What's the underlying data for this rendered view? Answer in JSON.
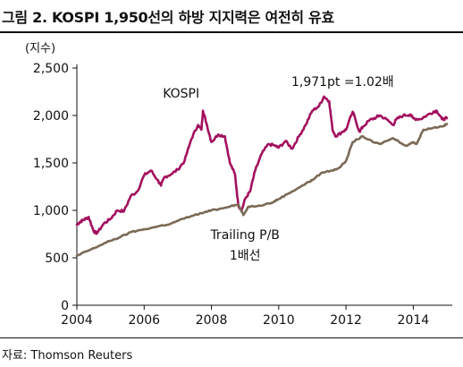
{
  "figure": {
    "title": "그림 2. KOSPI 1,950선의 하방 지지력은 여전히 유효",
    "source": "자료: Thomson Reuters"
  },
  "colors": {
    "kospi": "#a3105f",
    "pb_line": "#7a6a55",
    "axis": "#111111",
    "rule": "#111111"
  },
  "chart_data": {
    "type": "line",
    "title": "",
    "xlabel": "",
    "ylabel": "(지수)",
    "xlim": [
      2004,
      2015
    ],
    "ylim": [
      0,
      2500
    ],
    "x_ticks": [
      2004,
      2006,
      2008,
      2010,
      2012,
      2014
    ],
    "y_ticks": [
      0,
      500,
      1000,
      1500,
      2000,
      2500
    ],
    "y_tick_labels": [
      "0",
      "500",
      "1,000",
      "1,500",
      "2,000",
      "2,500"
    ],
    "grid": false,
    "series": [
      {
        "name": "KOSPI",
        "color": "#a3105f",
        "x": [
          2004.0,
          2004.1,
          2004.2,
          2004.35,
          2004.5,
          2004.6,
          2004.8,
          2005.0,
          2005.2,
          2005.4,
          2005.6,
          2005.8,
          2006.0,
          2006.2,
          2006.4,
          2006.5,
          2006.6,
          2006.8,
          2007.0,
          2007.2,
          2007.4,
          2007.6,
          2007.7,
          2007.75,
          2007.85,
          2008.0,
          2008.2,
          2008.4,
          2008.55,
          2008.7,
          2008.8,
          2008.9,
          2009.0,
          2009.15,
          2009.3,
          2009.5,
          2009.7,
          2009.9,
          2010.0,
          2010.2,
          2010.4,
          2010.6,
          2010.8,
          2011.0,
          2011.2,
          2011.35,
          2011.5,
          2011.6,
          2011.7,
          2011.9,
          2012.0,
          2012.2,
          2012.4,
          2012.5,
          2012.7,
          2012.9,
          2013.0,
          2013.2,
          2013.4,
          2013.5,
          2013.7,
          2013.9,
          2014.0,
          2014.2,
          2014.4,
          2014.6,
          2014.7,
          2014.85,
          2015.0
        ],
        "y": [
          850,
          880,
          900,
          930,
          780,
          760,
          860,
          910,
          1000,
          990,
          1150,
          1200,
          1370,
          1420,
          1320,
          1260,
          1350,
          1380,
          1430,
          1520,
          1750,
          1900,
          1850,
          2050,
          1920,
          1720,
          1800,
          1780,
          1500,
          1380,
          1050,
          1000,
          1120,
          1200,
          1420,
          1600,
          1700,
          1680,
          1660,
          1730,
          1650,
          1780,
          1900,
          2050,
          2100,
          2200,
          2150,
          1850,
          1780,
          1830,
          1850,
          2040,
          1830,
          1880,
          1950,
          1980,
          2000,
          1960,
          1900,
          1960,
          2000,
          2010,
          1970,
          1960,
          2000,
          2040,
          2050,
          1960,
          1971
        ]
      },
      {
        "name": "Trailing P/B 1배선",
        "color": "#7a6a55",
        "x": [
          2004.0,
          2004.3,
          2004.5,
          2004.8,
          2005.0,
          2005.3,
          2005.6,
          2006.0,
          2006.4,
          2006.8,
          2007.0,
          2007.4,
          2007.8,
          2008.0,
          2008.3,
          2008.6,
          2008.8,
          2008.95,
          2009.1,
          2009.4,
          2009.8,
          2010.0,
          2010.3,
          2010.6,
          2010.9,
          2011.0,
          2011.3,
          2011.6,
          2011.8,
          2012.0,
          2012.2,
          2012.5,
          2012.8,
          2013.0,
          2013.4,
          2013.8,
          2014.0,
          2014.1,
          2014.3,
          2014.6,
          2014.9,
          2015.0
        ],
        "y": [
          520,
          570,
          600,
          650,
          680,
          720,
          770,
          800,
          830,
          860,
          890,
          940,
          980,
          1000,
          1020,
          1050,
          1060,
          950,
          1040,
          1050,
          1080,
          1120,
          1180,
          1240,
          1300,
          1320,
          1400,
          1420,
          1450,
          1520,
          1720,
          1780,
          1720,
          1700,
          1760,
          1680,
          1720,
          1700,
          1850,
          1870,
          1890,
          1910
        ]
      }
    ],
    "annotations": [
      {
        "text": "KOSPI",
        "x": 2007.1,
        "y": 2190
      },
      {
        "text": "1,971pt =1.02배",
        "x": 2011.9,
        "y": 2310
      },
      {
        "text": "Trailing P/B",
        "x": 2009.0,
        "y": 700
      },
      {
        "text": "1배선",
        "x": 2009.0,
        "y": 480
      }
    ]
  }
}
